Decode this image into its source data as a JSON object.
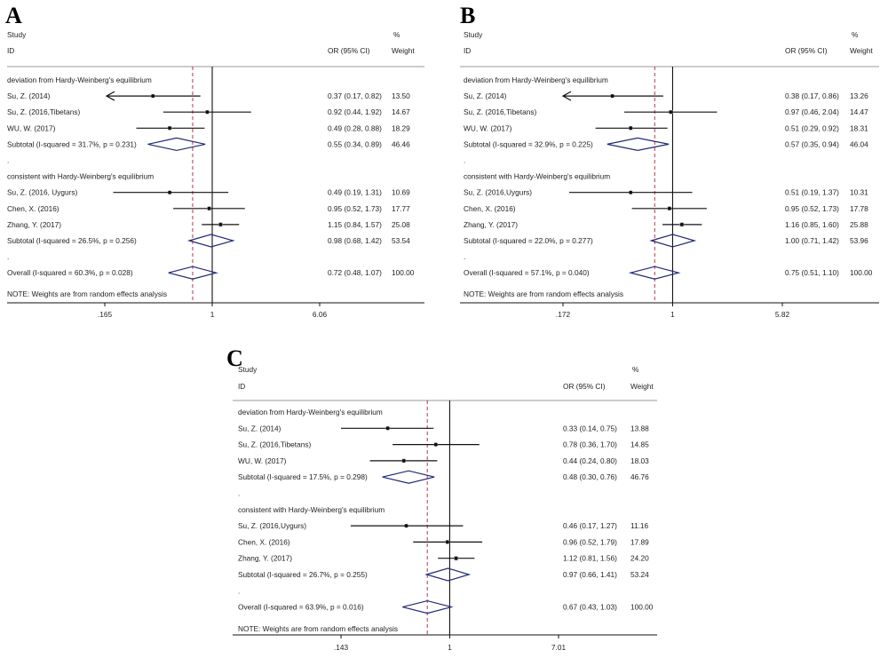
{
  "panels": [
    {
      "label": "A",
      "header": {
        "study": "Study",
        "id": "ID",
        "pct": "%",
        "ci": "OR (95% CI)",
        "weight": "Weight"
      },
      "axis_ticks": [
        {
          "value": 0.165,
          "label": ".165"
        },
        {
          "value": 1,
          "label": "1"
        },
        {
          "value": 6.06,
          "label": "6.06"
        }
      ],
      "null_line": 1,
      "overall_line": 0.72,
      "rows": [
        {
          "kind": "group",
          "label": "deviation from Hardy-Weinberg's equilibrium"
        },
        {
          "kind": "study",
          "label": "Su, Z. (2014)",
          "or": 0.37,
          "lo": 0.17,
          "hi": 0.82,
          "ci_text": "0.37 (0.17, 0.82)",
          "weight": "13.50",
          "arrow_left": true
        },
        {
          "kind": "study",
          "label": "Su, Z. (2016,Tibetans)",
          "or": 0.92,
          "lo": 0.44,
          "hi": 1.92,
          "ci_text": "0.92 (0.44, 1.92)",
          "weight": "14.67"
        },
        {
          "kind": "study",
          "label": "WU, W. (2017)",
          "or": 0.49,
          "lo": 0.28,
          "hi": 0.88,
          "ci_text": "0.49 (0.28, 0.88)",
          "weight": "18.29"
        },
        {
          "kind": "subtotal",
          "label": "Subtotal  (I-squared = 31.7%, p = 0.231)",
          "or": 0.55,
          "lo": 0.34,
          "hi": 0.89,
          "ci_text": "0.55 (0.34, 0.89)",
          "weight": "46.46"
        },
        {
          "kind": "dot",
          "label": "."
        },
        {
          "kind": "group",
          "label": "consistent with Hardy-Weinberg's equilibrium"
        },
        {
          "kind": "study",
          "label": "Su, Z. (2016,  Uygurs)",
          "or": 0.49,
          "lo": 0.19,
          "hi": 1.31,
          "ci_text": "0.49 (0.19, 1.31)",
          "weight": "10.69"
        },
        {
          "kind": "study",
          "label": "Chen, X. (2016)",
          "or": 0.95,
          "lo": 0.52,
          "hi": 1.73,
          "ci_text": "0.95 (0.52, 1.73)",
          "weight": "17.77"
        },
        {
          "kind": "study",
          "label": "Zhang, Y. (2017)",
          "or": 1.15,
          "lo": 0.84,
          "hi": 1.57,
          "ci_text": "1.15 (0.84, 1.57)",
          "weight": "25.08"
        },
        {
          "kind": "subtotal",
          "label": "Subtotal  (I-squared = 26.5%, p = 0.256)",
          "or": 0.98,
          "lo": 0.68,
          "hi": 1.42,
          "ci_text": "0.98 (0.68, 1.42)",
          "weight": "53.54"
        },
        {
          "kind": "dot",
          "label": "."
        },
        {
          "kind": "overall",
          "label": "Overall  (I-squared = 60.3%, p = 0.028)",
          "or": 0.72,
          "lo": 0.48,
          "hi": 1.07,
          "ci_text": "0.72 (0.48, 1.07)",
          "weight": "100.00"
        },
        {
          "kind": "note",
          "label": "NOTE: Weights are from random effects analysis"
        }
      ]
    },
    {
      "label": "B",
      "header": {
        "study": "Study",
        "id": "ID",
        "pct": "%",
        "ci": "OR (95% CI)",
        "weight": "Weight"
      },
      "axis_ticks": [
        {
          "value": 0.172,
          "label": ".172"
        },
        {
          "value": 1,
          "label": "1"
        },
        {
          "value": 5.82,
          "label": "5.82"
        }
      ],
      "null_line": 1,
      "overall_line": 0.75,
      "rows": [
        {
          "kind": "group",
          "label": "deviation from Hardy-Weinberg's equilibrium"
        },
        {
          "kind": "study",
          "label": "Su, Z. (2014)",
          "or": 0.38,
          "lo": 0.17,
          "hi": 0.86,
          "ci_text": "0.38 (0.17, 0.86)",
          "weight": "13.26",
          "arrow_left": true
        },
        {
          "kind": "study",
          "label": "Su, Z. (2016,Tibetans)",
          "or": 0.97,
          "lo": 0.46,
          "hi": 2.04,
          "ci_text": "0.97 (0.46, 2.04)",
          "weight": "14.47"
        },
        {
          "kind": "study",
          "label": "WU, W. (2017)",
          "or": 0.51,
          "lo": 0.29,
          "hi": 0.92,
          "ci_text": "0.51 (0.29, 0.92)",
          "weight": "18.31"
        },
        {
          "kind": "subtotal",
          "label": "Subtotal  (I-squared = 32.9%, p = 0.225)",
          "or": 0.57,
          "lo": 0.35,
          "hi": 0.94,
          "ci_text": "0.57 (0.35, 0.94)",
          "weight": "46.04"
        },
        {
          "kind": "dot",
          "label": "."
        },
        {
          "kind": "group",
          "label": "consistent with Hardy-Weinberg's equilibrium"
        },
        {
          "kind": "study",
          "label": "Su, Z. (2016,Uygurs)",
          "or": 0.51,
          "lo": 0.19,
          "hi": 1.37,
          "ci_text": "0.51 (0.19, 1.37)",
          "weight": "10.31"
        },
        {
          "kind": "study",
          "label": "Chen, X. (2016)",
          "or": 0.95,
          "lo": 0.52,
          "hi": 1.73,
          "ci_text": "0.95 (0.52, 1.73)",
          "weight": "17.78"
        },
        {
          "kind": "study",
          "label": "Zhang, Y. (2017)",
          "or": 1.16,
          "lo": 0.85,
          "hi": 1.6,
          "ci_text": "1.16 (0.85, 1.60)",
          "weight": "25.88"
        },
        {
          "kind": "subtotal",
          "label": "Subtotal  (I-squared = 22.0%, p = 0.277)",
          "or": 1.0,
          "lo": 0.71,
          "hi": 1.42,
          "ci_text": "1.00 (0.71, 1.42)",
          "weight": "53.96"
        },
        {
          "kind": "dot",
          "label": "."
        },
        {
          "kind": "overall",
          "label": "Overall  (I-squared = 57.1%, p = 0.040)",
          "or": 0.75,
          "lo": 0.51,
          "hi": 1.1,
          "ci_text": "0.75 (0.51, 1.10)",
          "weight": "100.00"
        },
        {
          "kind": "note",
          "label": "NOTE: Weights are from random effects analysis"
        }
      ]
    },
    {
      "label": "C",
      "header": {
        "study": "Study",
        "id": "ID",
        "pct": "%",
        "ci": "OR (95% CI)",
        "weight": "Weight"
      },
      "axis_ticks": [
        {
          "value": 0.143,
          "label": ".143"
        },
        {
          "value": 1,
          "label": "1"
        },
        {
          "value": 7.01,
          "label": "7.01"
        }
      ],
      "null_line": 1,
      "overall_line": 0.67,
      "rows": [
        {
          "kind": "group",
          "label": "deviation from Hardy-Weinberg's equilibrium"
        },
        {
          "kind": "study",
          "label": "Su, Z. (2014)",
          "or": 0.33,
          "lo": 0.14,
          "hi": 0.75,
          "ci_text": "0.33 (0.14, 0.75)",
          "weight": "13.88"
        },
        {
          "kind": "study",
          "label": "Su, Z. (2016,Tibetans)",
          "or": 0.78,
          "lo": 0.36,
          "hi": 1.7,
          "ci_text": "0.78 (0.36, 1.70)",
          "weight": "14.85"
        },
        {
          "kind": "study",
          "label": "WU, W. (2017)",
          "or": 0.44,
          "lo": 0.24,
          "hi": 0.8,
          "ci_text": "0.44 (0.24, 0.80)",
          "weight": "18.03"
        },
        {
          "kind": "subtotal",
          "label": "Subtotal  (I-squared = 17.5%, p = 0.298)",
          "or": 0.48,
          "lo": 0.3,
          "hi": 0.76,
          "ci_text": "0.48 (0.30, 0.76)",
          "weight": "46.76"
        },
        {
          "kind": "dot",
          "label": "."
        },
        {
          "kind": "group",
          "label": "consistent with Hardy-Weinberg's equilibrium"
        },
        {
          "kind": "study",
          "label": "Su, Z. (2016,Uygurs)",
          "or": 0.46,
          "lo": 0.17,
          "hi": 1.27,
          "ci_text": "0.46 (0.17, 1.27)",
          "weight": "11.16"
        },
        {
          "kind": "study",
          "label": "Chen, X. (2016)",
          "or": 0.96,
          "lo": 0.52,
          "hi": 1.79,
          "ci_text": "0.96 (0.52, 1.79)",
          "weight": "17.89"
        },
        {
          "kind": "study",
          "label": "Zhang, Y. (2017)",
          "or": 1.12,
          "lo": 0.81,
          "hi": 1.56,
          "ci_text": "1.12 (0.81, 1.56)",
          "weight": "24.20"
        },
        {
          "kind": "subtotal",
          "label": "Subtotal  (I-squared = 26.7%, p = 0.255)",
          "or": 0.97,
          "lo": 0.66,
          "hi": 1.41,
          "ci_text": "0.97 (0.66, 1.41)",
          "weight": "53.24"
        },
        {
          "kind": "dot",
          "label": "."
        },
        {
          "kind": "overall",
          "label": "Overall  (I-squared = 63.9%, p = 0.016)",
          "or": 0.67,
          "lo": 0.43,
          "hi": 1.03,
          "ci_text": "0.67 (0.43, 1.03)",
          "weight": "100.00"
        },
        {
          "kind": "note",
          "label": "NOTE: Weights are from random effects analysis"
        }
      ]
    }
  ],
  "colors": {
    "diamond": "#1f2a78",
    "reference_line": "#b0394b",
    "line": "#111111",
    "rule": "#9a9a9a"
  },
  "chart_data": [
    {
      "type": "scatter",
      "title": "A",
      "xlabel": "",
      "ylabel": "",
      "x_scale": "log",
      "xticks": [
        0.165,
        1,
        6.06
      ],
      "xlim": [
        0.165,
        6.06
      ],
      "series": [
        {
          "values": [
            {
              "study": "Su, Z. (2014)",
              "or": 0.37,
              "lo": 0.17,
              "hi": 0.82,
              "weight": 13.5
            },
            {
              "study": "Su, Z. (2016,Tibetans)",
              "or": 0.92,
              "lo": 0.44,
              "hi": 1.92,
              "weight": 14.67
            },
            {
              "study": "WU, W. (2017)",
              "or": 0.49,
              "lo": 0.28,
              "hi": 0.88,
              "weight": 18.29
            },
            {
              "study": "Subtotal",
              "or": 0.55,
              "lo": 0.34,
              "hi": 0.89,
              "weight": 46.46
            },
            {
              "study": "Su, Z. (2016,  Uygurs)",
              "or": 0.49,
              "lo": 0.19,
              "hi": 1.31,
              "weight": 10.69
            },
            {
              "study": "Chen, X. (2016)",
              "or": 0.95,
              "lo": 0.52,
              "hi": 1.73,
              "weight": 17.77
            },
            {
              "study": "Zhang, Y. (2017)",
              "or": 1.15,
              "lo": 0.84,
              "hi": 1.57,
              "weight": 25.08
            },
            {
              "study": "Subtotal",
              "or": 0.98,
              "lo": 0.68,
              "hi": 1.42,
              "weight": 53.54
            },
            {
              "study": "Overall",
              "or": 0.72,
              "lo": 0.48,
              "hi": 1.07,
              "weight": 100.0
            }
          ]
        }
      ]
    },
    {
      "type": "scatter",
      "title": "B",
      "xlabel": "",
      "ylabel": "",
      "x_scale": "log",
      "xticks": [
        0.172,
        1,
        5.82
      ],
      "xlim": [
        0.172,
        5.82
      ],
      "series": [
        {
          "values": [
            {
              "study": "Su, Z. (2014)",
              "or": 0.38,
              "lo": 0.17,
              "hi": 0.86,
              "weight": 13.26
            },
            {
              "study": "Su, Z. (2016,Tibetans)",
              "or": 0.97,
              "lo": 0.46,
              "hi": 2.04,
              "weight": 14.47
            },
            {
              "study": "WU, W. (2017)",
              "or": 0.51,
              "lo": 0.29,
              "hi": 0.92,
              "weight": 18.31
            },
            {
              "study": "Subtotal",
              "or": 0.57,
              "lo": 0.35,
              "hi": 0.94,
              "weight": 46.04
            },
            {
              "study": "Su, Z. (2016,Uygurs)",
              "or": 0.51,
              "lo": 0.19,
              "hi": 1.37,
              "weight": 10.31
            },
            {
              "study": "Chen, X. (2016)",
              "or": 0.95,
              "lo": 0.52,
              "hi": 1.73,
              "weight": 17.78
            },
            {
              "study": "Zhang, Y. (2017)",
              "or": 1.16,
              "lo": 0.85,
              "hi": 1.6,
              "weight": 25.88
            },
            {
              "study": "Subtotal",
              "or": 1.0,
              "lo": 0.71,
              "hi": 1.42,
              "weight": 53.96
            },
            {
              "study": "Overall",
              "or": 0.75,
              "lo": 0.51,
              "hi": 1.1,
              "weight": 100.0
            }
          ]
        }
      ]
    },
    {
      "type": "scatter",
      "title": "C",
      "xlabel": "",
      "ylabel": "",
      "x_scale": "log",
      "xticks": [
        0.143,
        1,
        7.01
      ],
      "xlim": [
        0.143,
        7.01
      ],
      "series": [
        {
          "values": [
            {
              "study": "Su, Z. (2014)",
              "or": 0.33,
              "lo": 0.14,
              "hi": 0.75,
              "weight": 13.88
            },
            {
              "study": "Su, Z. (2016,Tibetans)",
              "or": 0.78,
              "lo": 0.36,
              "hi": 1.7,
              "weight": 14.85
            },
            {
              "study": "WU, W. (2017)",
              "or": 0.44,
              "lo": 0.24,
              "hi": 0.8,
              "weight": 18.03
            },
            {
              "study": "Subtotal",
              "or": 0.48,
              "lo": 0.3,
              "hi": 0.76,
              "weight": 46.76
            },
            {
              "study": "Su, Z. (2016,Uygurs)",
              "or": 0.46,
              "lo": 0.17,
              "hi": 1.27,
              "weight": 11.16
            },
            {
              "study": "Chen, X. (2016)",
              "or": 0.96,
              "lo": 0.52,
              "hi": 1.79,
              "weight": 17.89
            },
            {
              "study": "Zhang, Y. (2017)",
              "or": 1.12,
              "lo": 0.81,
              "hi": 1.56,
              "weight": 24.2
            },
            {
              "study": "Subtotal",
              "or": 0.97,
              "lo": 0.66,
              "hi": 1.41,
              "weight": 53.24
            },
            {
              "study": "Overall",
              "or": 0.67,
              "lo": 0.43,
              "hi": 1.03,
              "weight": 100.0
            }
          ]
        }
      ]
    }
  ]
}
